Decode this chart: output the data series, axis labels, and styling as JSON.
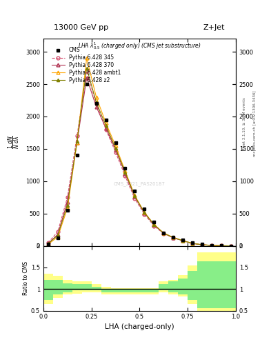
{
  "title_top": "13000 GeV pp",
  "title_right": "Z+Jet",
  "plot_title": "LHA $\\lambda^1_{0.5}$ (charged only) (CMS jet substructure)",
  "xlabel": "LHA (charged-only)",
  "right_label_top": "Rivet 3.1.10, ≥ 3.3M events",
  "right_label_bot": "mcplots.cern.ch [arXiv:1306.3436]",
  "watermark": "CMS_2021_PAS20187",
  "cms_x": [
    0.025,
    0.075,
    0.125,
    0.175,
    0.225,
    0.275,
    0.325,
    0.375,
    0.425,
    0.475,
    0.525,
    0.575,
    0.625,
    0.675,
    0.725,
    0.775,
    0.825,
    0.875,
    0.925,
    0.975
  ],
  "cms_y": [
    30,
    120,
    550,
    1400,
    2500,
    2200,
    1950,
    1600,
    1200,
    850,
    570,
    370,
    195,
    140,
    90,
    55,
    28,
    12,
    4,
    1
  ],
  "p345_x": [
    0.025,
    0.075,
    0.125,
    0.175,
    0.225,
    0.275,
    0.325,
    0.375,
    0.425,
    0.475,
    0.525,
    0.575,
    0.625,
    0.675,
    0.725,
    0.775,
    0.825,
    0.875,
    0.925,
    0.975
  ],
  "p345_y": [
    50,
    220,
    750,
    1700,
    2700,
    2200,
    1800,
    1450,
    1080,
    730,
    490,
    310,
    190,
    125,
    78,
    38,
    18,
    8,
    3,
    1
  ],
  "p370_x": [
    0.025,
    0.075,
    0.125,
    0.175,
    0.225,
    0.275,
    0.325,
    0.375,
    0.425,
    0.475,
    0.525,
    0.575,
    0.625,
    0.675,
    0.725,
    0.775,
    0.825,
    0.875,
    0.925,
    0.975
  ],
  "p370_y": [
    35,
    180,
    680,
    1600,
    2600,
    2150,
    1820,
    1490,
    1120,
    760,
    510,
    325,
    195,
    128,
    80,
    39,
    18,
    8,
    3,
    1
  ],
  "pambt1_x": [
    0.025,
    0.075,
    0.125,
    0.175,
    0.225,
    0.275,
    0.325,
    0.375,
    0.425,
    0.475,
    0.525,
    0.575,
    0.625,
    0.675,
    0.725,
    0.775,
    0.825,
    0.875,
    0.925,
    0.975
  ],
  "pambt1_y": [
    25,
    140,
    580,
    1600,
    2900,
    2300,
    1900,
    1550,
    1160,
    780,
    520,
    335,
    200,
    132,
    83,
    40,
    19,
    9,
    3,
    1
  ],
  "pz2_x": [
    0.025,
    0.075,
    0.125,
    0.175,
    0.225,
    0.275,
    0.325,
    0.375,
    0.425,
    0.475,
    0.525,
    0.575,
    0.625,
    0.675,
    0.725,
    0.775,
    0.825,
    0.875,
    0.925,
    0.975
  ],
  "pz2_y": [
    35,
    165,
    630,
    1620,
    2750,
    2220,
    1860,
    1510,
    1140,
    770,
    515,
    330,
    198,
    130,
    81,
    39,
    18,
    8,
    3,
    1
  ],
  "ratio_bins": [
    0.0,
    0.05,
    0.1,
    0.15,
    0.2,
    0.25,
    0.3,
    0.35,
    0.4,
    0.45,
    0.5,
    0.55,
    0.6,
    0.65,
    0.7,
    0.75,
    0.8,
    0.85,
    0.9,
    0.95,
    1.0
  ],
  "ratio_yellow_lo": [
    0.65,
    0.8,
    0.88,
    0.9,
    0.92,
    0.92,
    0.88,
    0.88,
    0.88,
    0.88,
    0.88,
    0.88,
    0.92,
    0.88,
    0.83,
    0.65,
    0.45,
    0.45,
    0.45,
    0.45
  ],
  "ratio_yellow_hi": [
    1.35,
    1.3,
    1.22,
    1.18,
    1.18,
    1.12,
    1.05,
    1.02,
    1.02,
    1.02,
    1.02,
    1.02,
    1.18,
    1.22,
    1.32,
    1.55,
    1.85,
    1.85,
    1.85,
    1.85
  ],
  "ratio_green_lo": [
    0.75,
    0.88,
    0.93,
    0.97,
    0.98,
    0.97,
    0.92,
    0.92,
    0.92,
    0.92,
    0.92,
    0.92,
    0.97,
    0.92,
    0.87,
    0.75,
    0.55,
    0.55,
    0.55,
    0.55
  ],
  "ratio_green_hi": [
    1.22,
    1.22,
    1.14,
    1.12,
    1.12,
    1.06,
    1.0,
    1.0,
    1.0,
    1.0,
    1.0,
    1.0,
    1.12,
    1.18,
    1.25,
    1.42,
    1.65,
    1.65,
    1.65,
    1.65
  ],
  "color_p345": "#d45070",
  "color_p370": "#b03050",
  "color_pambt1": "#ffa500",
  "color_pz2": "#808000",
  "color_cms": "black",
  "ylim_main": [
    0,
    3200
  ],
  "ylim_ratio": [
    0.5,
    2.0
  ],
  "xlim": [
    0.0,
    1.0
  ],
  "yticks_main": [
    0,
    500,
    1000,
    1500,
    2000,
    2500,
    3000
  ],
  "yticks_ratio": [
    0.5,
    1.0,
    1.5,
    2.0
  ],
  "xticks": [
    0.0,
    0.25,
    0.5,
    0.75,
    1.0
  ],
  "background_color": "white"
}
